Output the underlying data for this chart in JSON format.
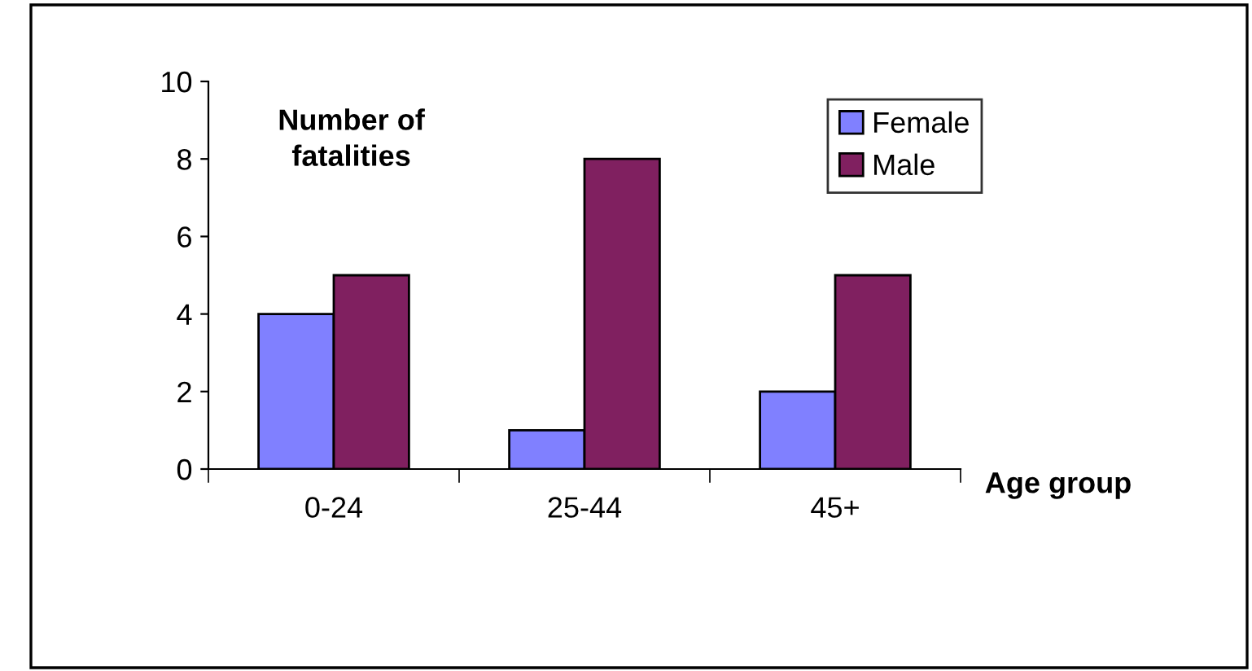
{
  "chart_data": {
    "type": "bar",
    "categories": [
      "0-24",
      "25-44",
      "45+"
    ],
    "series": [
      {
        "name": "Female",
        "color": "#8080ff",
        "values": [
          4,
          1,
          2
        ]
      },
      {
        "name": "Male",
        "color": "#802060",
        "values": [
          5,
          8,
          5
        ]
      }
    ],
    "ylabel": "Number of fatalities",
    "xlabel": "Age group",
    "ylim": [
      0,
      10
    ],
    "yticks": [
      0,
      2,
      4,
      6,
      8,
      10
    ],
    "grid": false,
    "legend": "top right"
  }
}
